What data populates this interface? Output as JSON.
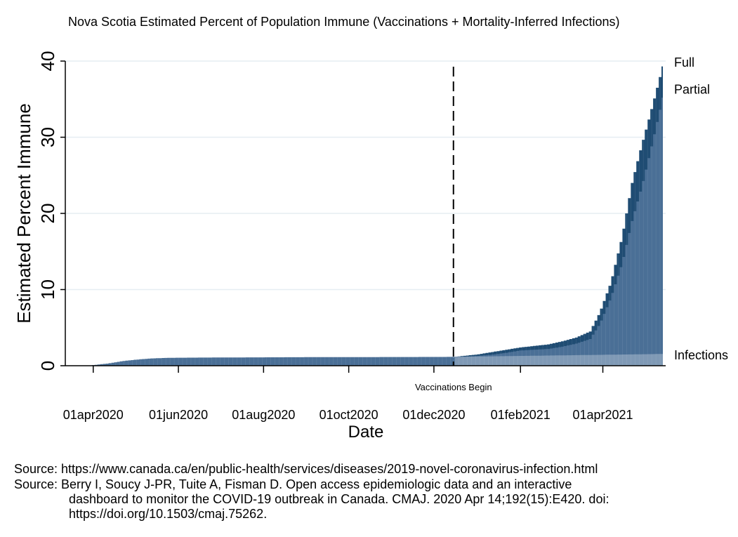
{
  "chart_data": {
    "type": "area",
    "title": "Nova Scotia Estimated Percent of Population Immune (Vaccinations + Mortality-Inferred Infections)",
    "xlabel": "Date",
    "ylabel": "Estimated Percent Immune",
    "ylim": [
      0,
      40
    ],
    "yticks": [
      0,
      10,
      20,
      30,
      40
    ],
    "xticks": [
      {
        "day": 0,
        "label": "01apr2020"
      },
      {
        "day": 61,
        "label": "01jun2020"
      },
      {
        "day": 122,
        "label": "01aug2020"
      },
      {
        "day": 183,
        "label": "01oct2020"
      },
      {
        "day": 244,
        "label": "01dec2020"
      },
      {
        "day": 306,
        "label": "01feb2021"
      },
      {
        "day": 365,
        "label": "01apr2021"
      }
    ],
    "x_range_days": [
      -20,
      410
    ],
    "x_origin": "01apr2020",
    "annotation": {
      "day": 258,
      "label": "Vaccinations Begin"
    },
    "series_labels": {
      "full": "Full",
      "partial": "Partial",
      "infections": "Infections"
    },
    "series": [
      {
        "name": "Infections",
        "x": [
          -5,
          0,
          10,
          20,
          30,
          40,
          50,
          60,
          90,
          120,
          150,
          180,
          210,
          240,
          258,
          270,
          290,
          310,
          330,
          350,
          370,
          390,
          408
        ],
        "values": [
          0,
          0.1,
          0.3,
          0.6,
          0.8,
          0.95,
          1.02,
          1.05,
          1.08,
          1.1,
          1.12,
          1.13,
          1.14,
          1.15,
          1.16,
          1.2,
          1.25,
          1.3,
          1.35,
          1.4,
          1.45,
          1.5,
          1.55
        ]
      },
      {
        "name": "Partial",
        "x": [
          258,
          265,
          275,
          285,
          295,
          305,
          315,
          325,
          335,
          345,
          355,
          362,
          370,
          378,
          385,
          392,
          398,
          403,
          408
        ],
        "values": [
          1.16,
          1.2,
          1.3,
          1.45,
          1.7,
          2.0,
          2.1,
          2.2,
          2.5,
          2.9,
          3.5,
          5.5,
          9.0,
          13.5,
          19.0,
          23.5,
          28.0,
          32.0,
          36.0
        ]
      },
      {
        "name": "Full",
        "x": [
          258,
          265,
          275,
          285,
          295,
          305,
          315,
          325,
          335,
          345,
          355,
          362,
          370,
          378,
          385,
          392,
          398,
          403,
          408
        ],
        "values": [
          1.16,
          1.3,
          1.5,
          1.8,
          2.1,
          2.4,
          2.6,
          2.8,
          3.2,
          3.7,
          4.5,
          7.0,
          11.0,
          17.0,
          24.0,
          29.0,
          33.0,
          36.5,
          40.0
        ]
      }
    ]
  },
  "colors": {
    "full": "#1f4c73",
    "partial": "#4a6f96",
    "infections": "#7f99b5",
    "grid": "#e6eef2",
    "axis": "#000000"
  },
  "sources": {
    "line1": "Source: https://www.canada.ca/en/public-health/services/diseases/2019-novel-coronavirus-infection.html",
    "line2_prefix": "Source: Berry I, Soucy J-PR, Tuite A, Fisman D. Open access epidemiologic data and an interactive",
    "line2_cont": "dashboard to monitor the COVID-19 outbreak in Canada. CMAJ. 2020 Apr 14;192(15):E420. doi: https://doi.org/10.1503/cmaj.75262."
  }
}
